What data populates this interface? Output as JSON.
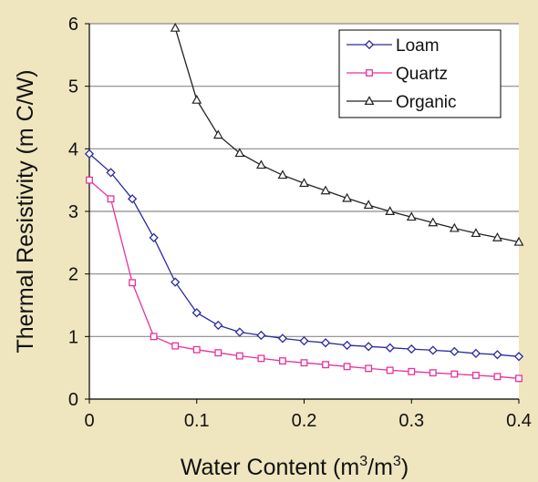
{
  "chart_data": {
    "type": "line",
    "title": "",
    "xlabel": "Water Content (m3/m3)",
    "xlabel_parts": [
      "Water Content (m",
      "3",
      "/m",
      "3",
      ")"
    ],
    "ylabel": "Thermal Resistivity (m C/W)",
    "xlim": [
      0,
      0.4
    ],
    "ylim": [
      0,
      6
    ],
    "x_ticks": [
      "0",
      "0.1",
      "0.2",
      "0.3",
      "0.4"
    ],
    "y_ticks": [
      "0",
      "1",
      "2",
      "3",
      "4",
      "5",
      "6"
    ],
    "grid": "horizontal",
    "legend_position": "top-right",
    "series": [
      {
        "name": "Loam",
        "color": "#2a2aa0",
        "marker": "diamond",
        "x": [
          0,
          0.02,
          0.04,
          0.06,
          0.08,
          0.1,
          0.12,
          0.14,
          0.16,
          0.18,
          0.2,
          0.22,
          0.24,
          0.26,
          0.28,
          0.3,
          0.32,
          0.34,
          0.36,
          0.38,
          0.4
        ],
        "values": [
          3.92,
          3.62,
          3.2,
          2.58,
          1.87,
          1.38,
          1.18,
          1.07,
          1.02,
          0.97,
          0.93,
          0.9,
          0.86,
          0.84,
          0.82,
          0.8,
          0.78,
          0.76,
          0.73,
          0.71,
          0.68
        ]
      },
      {
        "name": "Quartz",
        "color": "#e8329a",
        "marker": "square",
        "x": [
          0,
          0.02,
          0.04,
          0.06,
          0.08,
          0.1,
          0.12,
          0.14,
          0.16,
          0.18,
          0.2,
          0.22,
          0.24,
          0.26,
          0.28,
          0.3,
          0.32,
          0.34,
          0.36,
          0.38,
          0.4
        ],
        "values": [
          3.5,
          3.2,
          1.86,
          1.0,
          0.85,
          0.79,
          0.74,
          0.69,
          0.65,
          0.61,
          0.58,
          0.55,
          0.52,
          0.49,
          0.46,
          0.44,
          0.42,
          0.4,
          0.38,
          0.36,
          0.33
        ]
      },
      {
        "name": "Organic",
        "color": "#222222",
        "marker": "triangle",
        "x": [
          0.08,
          0.1,
          0.12,
          0.14,
          0.16,
          0.18,
          0.2,
          0.22,
          0.24,
          0.26,
          0.28,
          0.3,
          0.32,
          0.34,
          0.36,
          0.38,
          0.4
        ],
        "values": [
          5.93,
          4.78,
          4.22,
          3.93,
          3.74,
          3.58,
          3.45,
          3.33,
          3.21,
          3.1,
          3.0,
          2.91,
          2.82,
          2.73,
          2.65,
          2.58,
          2.51
        ]
      }
    ]
  }
}
